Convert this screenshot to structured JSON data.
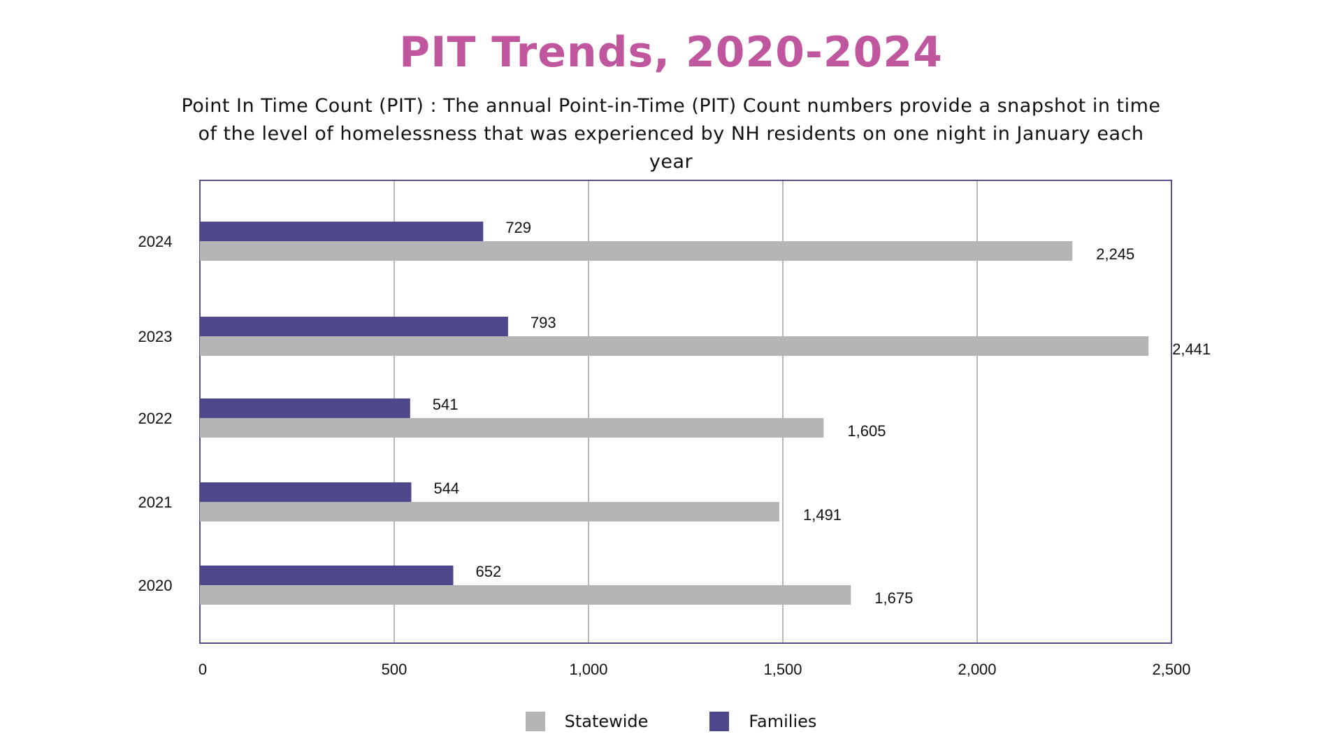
{
  "colors": {
    "title": "#c0579e",
    "statewide": "#b5b5b5",
    "families": "#4d488c",
    "frame": "#5a4f96",
    "grid": "#b8b8b8"
  },
  "chart_data": {
    "type": "bar",
    "orientation": "horizontal",
    "title": "PIT Trends, 2020-2024",
    "subtitle_lines": [
      "Point In Time Count (PIT) : The annual Point-in-Time (PIT) Count numbers provide a snapshot in time",
      "of the level of homelessness that was experienced by NH residents on one night in January each year"
    ],
    "categories": [
      "2024",
      "2023",
      "2022",
      "2021",
      "2020"
    ],
    "series": [
      {
        "name": "Families",
        "color_key": "families",
        "values": [
          729,
          793,
          541,
          544,
          652
        ],
        "labels": [
          "729",
          "793",
          "541",
          "544",
          "652"
        ]
      },
      {
        "name": "Statewide",
        "color_key": "statewide",
        "values": [
          2245,
          2441,
          1605,
          1491,
          1675
        ],
        "labels": [
          "2,245",
          "2,441",
          "1,605",
          "1,491",
          "1,675"
        ]
      }
    ],
    "xlim": [
      0,
      2500
    ],
    "x_ticks": [
      0,
      500,
      1000,
      1500,
      2000,
      2500
    ],
    "x_tick_labels": [
      "0",
      "500",
      "1,000",
      "1,500",
      "2,000",
      "2,500"
    ],
    "xlabel": "",
    "ylabel": "",
    "grid": true,
    "legend": {
      "position": "bottom-center",
      "entries": [
        "Statewide",
        "Families"
      ]
    }
  }
}
